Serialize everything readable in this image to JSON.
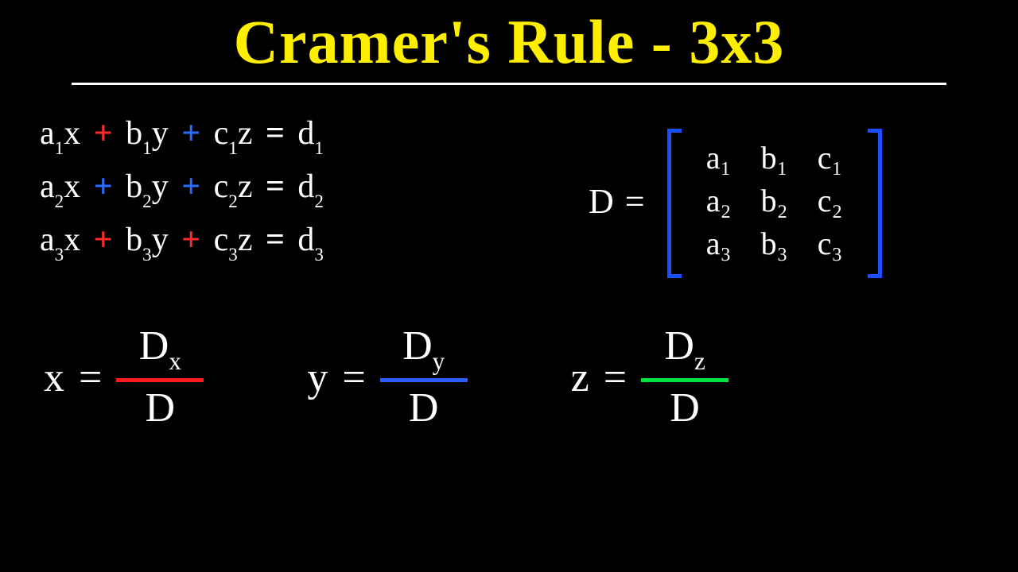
{
  "title": {
    "text": "Cramer's Rule - 3x3",
    "color": "#ffee00",
    "underline_color": "#ffffff",
    "fontsize": 78
  },
  "colors": {
    "background": "#000000",
    "text": "#ffffff",
    "plus_red": "#ff2a2a",
    "plus_blue": "#2a6cff",
    "bracket_blue": "#1a4fff",
    "bar_red": "#ff1a1a",
    "bar_blue": "#2a5cff",
    "bar_green": "#00e640"
  },
  "equations": {
    "rows": [
      {
        "a": "a",
        "ai": "1",
        "b": "b",
        "bi": "1",
        "c": "c",
        "ci": "1",
        "d": "d",
        "di": "1",
        "p1": "plus_red",
        "p2": "plus_blue"
      },
      {
        "a": "a",
        "ai": "2",
        "b": "b",
        "bi": "2",
        "c": "c",
        "ci": "2",
        "d": "d",
        "di": "2",
        "p1": "plus_blue",
        "p2": "plus_blue"
      },
      {
        "a": "a",
        "ai": "3",
        "b": "b",
        "bi": "3",
        "c": "c",
        "ci": "3",
        "d": "d",
        "di": "3",
        "p1": "plus_red",
        "p2": "plus_red"
      }
    ],
    "vars": {
      "x": "x",
      "y": "y",
      "z": "z"
    },
    "plus": "+",
    "eq": "="
  },
  "determinant": {
    "label": "D",
    "eq": "=",
    "bracket_color": "#1a4fff",
    "cells": [
      [
        "a₁",
        "b₁",
        "c₁"
      ],
      [
        "a₂",
        "b₂",
        "c₂"
      ],
      [
        "a₃",
        "b₃",
        "c₃"
      ]
    ]
  },
  "solutions": [
    {
      "var": "x",
      "num": "D",
      "numsub": "x",
      "den": "D",
      "bar_color": "#ff1a1a"
    },
    {
      "var": "y",
      "num": "D",
      "numsub": "y",
      "den": "D",
      "bar_color": "#2a5cff"
    },
    {
      "var": "z",
      "num": "D",
      "numsub": "z",
      "den": "D",
      "bar_color": "#00e640"
    }
  ]
}
